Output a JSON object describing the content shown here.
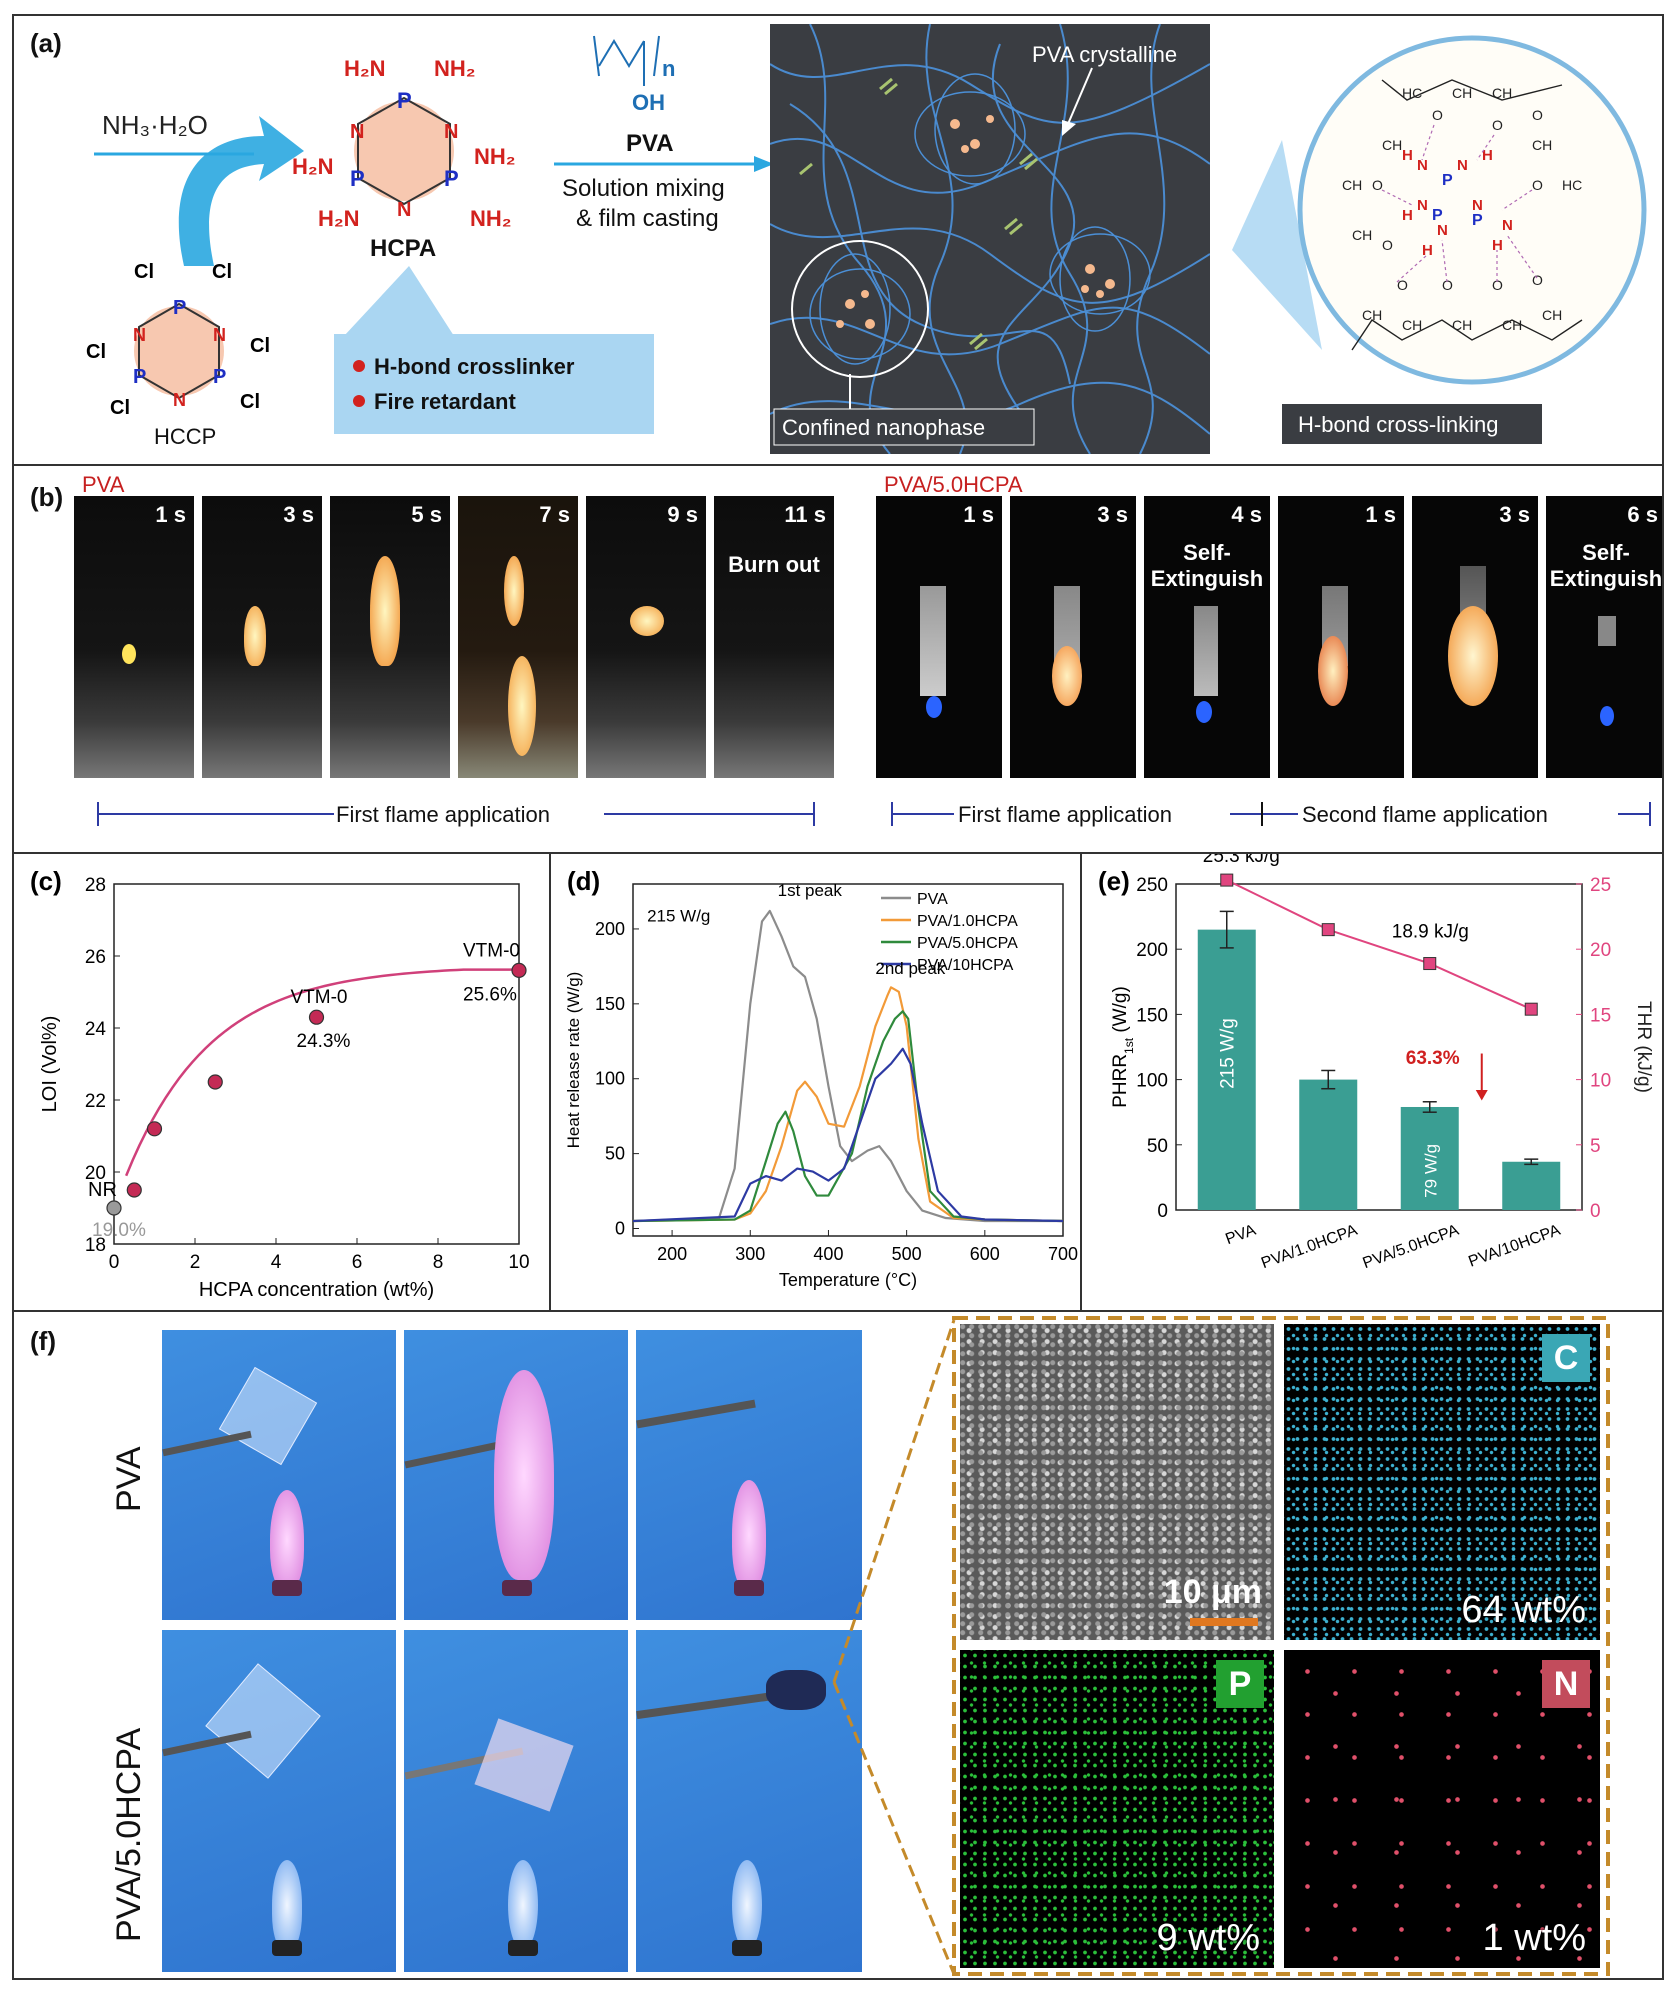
{
  "panel_a": {
    "label": "(a)",
    "reagent": "NH₃·H₂O",
    "hccp_name": "HCCP",
    "hcpa_name": "HCPA",
    "pva_name": "PVA",
    "pva_repeat": "n",
    "pva_oh": "OH",
    "process_line1": "Solution mixing",
    "process_line2": "& film casting",
    "benefit1": "H-bond crosslinker",
    "benefit2": "Fire retardant",
    "crystalline_label": "PVA crystalline",
    "confined_label": "Confined nanophase",
    "hbond_label": "H-bond cross-linking",
    "colors": {
      "arrow": "#2aa7e0",
      "hcpa_core": "#f7c8b0",
      "network_bg": "#3a3d42",
      "chain": "#4b8fd6"
    }
  },
  "panel_b": {
    "label": "(b)",
    "title_pva": "PVA",
    "title_hcpa": "PVA/5.0HCPA",
    "pva_frames": [
      "1 s",
      "3 s",
      "5 s",
      "7 s",
      "9 s",
      "11 s"
    ],
    "pva_burnout": "Burn out",
    "hcpa_frames": [
      "1 s",
      "3 s",
      "4 s",
      "1 s",
      "3 s",
      "6 s"
    ],
    "self_ext_1": "Self-",
    "self_ext_2": "Extinguish",
    "first_flame_pva": "First flame application",
    "first_flame_hcpa": "First flame application",
    "second_flame_hcpa": "Second flame application"
  },
  "panel_c": {
    "label": "(c)",
    "chart_data": {
      "type": "scatter",
      "xlabel": "HCPA concentration (wt%)",
      "ylabel": "LOI (Vol%)",
      "xlim": [
        0,
        10
      ],
      "ylim": [
        18,
        28
      ],
      "xticks": [
        "0",
        "2",
        "4",
        "6",
        "8",
        "10"
      ],
      "yticks": [
        "18",
        "20",
        "22",
        "24",
        "26",
        "28"
      ],
      "points": [
        {
          "x": 0,
          "y": 19.0
        },
        {
          "x": 0.5,
          "y": 19.5
        },
        {
          "x": 1.0,
          "y": 21.2
        },
        {
          "x": 2.5,
          "y": 22.5
        },
        {
          "x": 5.0,
          "y": 24.3
        },
        {
          "x": 10.0,
          "y": 25.6
        }
      ],
      "annotations": {
        "nr": "NR",
        "nr_val": "19.0%",
        "vtm5": "VTM-0",
        "vtm5_val": "24.3%",
        "vtm10": "VTM-0",
        "vtm10_val": "25.6%"
      }
    }
  },
  "panel_d": {
    "label": "(d)",
    "chart_data": {
      "type": "line",
      "xlabel": "Temperature (°C)",
      "ylabel": "Heat release rate (W/g)",
      "xlim": [
        150,
        700
      ],
      "ylim": [
        -5,
        230
      ],
      "xticks": [
        "200",
        "300",
        "400",
        "500",
        "600",
        "700"
      ],
      "yticks": [
        "0",
        "50",
        "100",
        "150",
        "200"
      ],
      "annotations": {
        "peak1": "1st peak",
        "peak1_val": "215 W/g",
        "peak2": "2nd peak"
      },
      "series": [
        {
          "name": "PVA",
          "color": "#8c8c8c",
          "x": [
            150,
            260,
            280,
            300,
            315,
            325,
            340,
            355,
            370,
            385,
            400,
            415,
            430,
            450,
            465,
            480,
            500,
            520,
            550,
            600,
            700
          ],
          "y": [
            5,
            7,
            40,
            150,
            205,
            212,
            195,
            175,
            168,
            140,
            95,
            55,
            45,
            52,
            55,
            45,
            25,
            12,
            7,
            5,
            5
          ]
        },
        {
          "name": "PVA/1.0HCPA",
          "color": "#f29a38",
          "x": [
            150,
            280,
            300,
            320,
            340,
            360,
            370,
            385,
            400,
            420,
            440,
            460,
            475,
            480,
            490,
            500,
            515,
            530,
            560,
            600,
            700
          ],
          "y": [
            5,
            6,
            10,
            25,
            55,
            92,
            98,
            88,
            70,
            68,
            95,
            135,
            155,
            161,
            158,
            135,
            60,
            18,
            7,
            6,
            5
          ]
        },
        {
          "name": "PVA/5.0HCPA",
          "color": "#2f8a3c",
          "x": [
            150,
            280,
            300,
            320,
            335,
            345,
            355,
            370,
            385,
            400,
            430,
            450,
            470,
            485,
            495,
            502,
            515,
            530,
            560,
            600,
            700
          ],
          "y": [
            5,
            6,
            12,
            45,
            70,
            78,
            65,
            35,
            22,
            22,
            50,
            95,
            125,
            140,
            145,
            140,
            80,
            25,
            8,
            6,
            5
          ]
        },
        {
          "name": "PVA/10HCPA",
          "color": "#2d3aa3",
          "x": [
            150,
            280,
            300,
            320,
            340,
            360,
            380,
            400,
            420,
            440,
            460,
            480,
            495,
            505,
            520,
            540,
            570,
            600,
            700
          ],
          "y": [
            5,
            8,
            30,
            35,
            32,
            40,
            38,
            32,
            40,
            70,
            100,
            110,
            120,
            110,
            70,
            25,
            8,
            6,
            5
          ]
        }
      ]
    }
  },
  "panel_e": {
    "label": "(e)",
    "chart_data": {
      "type": "bar",
      "categories": [
        "PVA",
        "PVA/1.0HCPA",
        "PVA/5.0HCPA",
        "PVA/10HCPA"
      ],
      "ylabel_left": "PHRR",
      "ylabel_left_sub": "1st",
      "ylabel_left_unit": " (W/g)",
      "ylabel_right": "THR (kJ/g)",
      "ylim_left": [
        0,
        250
      ],
      "ylim_right": [
        0,
        25
      ],
      "yticks_left": [
        "0",
        "50",
        "100",
        "150",
        "200",
        "250"
      ],
      "yticks_right": [
        "0",
        "5",
        "10",
        "15",
        "20",
        "25"
      ],
      "series": [
        {
          "name": "PHRR",
          "color": "#3a9e93",
          "values": [
            215,
            100,
            79,
            37
          ]
        },
        {
          "name": "THR",
          "color": "#e0457f",
          "values": [
            25.3,
            21.5,
            18.9,
            15.4
          ]
        }
      ],
      "annotations": {
        "thr_pva": "25.3 kJ/g",
        "thr_5": "18.9 kJ/g",
        "bar_pva": "215 W/g",
        "bar_5": "79 W/g",
        "reduction": "63.3%"
      }
    }
  },
  "panel_f": {
    "label": "(f)",
    "row1": "PVA",
    "row2": "PVA/5.0HCPA",
    "scale": "10 μm",
    "maps": [
      {
        "element": "C",
        "wt": "64 wt%",
        "color": "#3db0cf"
      },
      {
        "element": "P",
        "wt": "9 wt%",
        "color": "#2bbf3a"
      },
      {
        "element": "N",
        "wt": "1 wt%",
        "color": "#e0506a"
      }
    ]
  }
}
